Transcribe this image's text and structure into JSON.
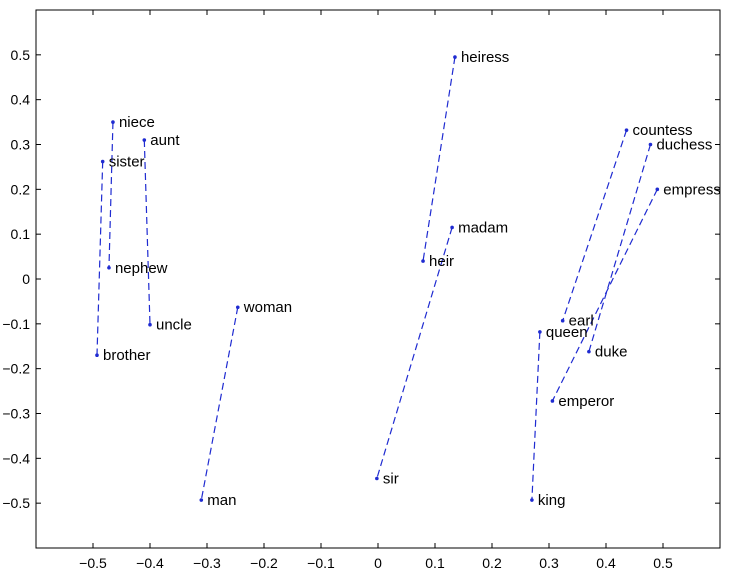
{
  "chart_data": {
    "type": "scatter",
    "title": "",
    "xlabel": "",
    "ylabel": "",
    "xlim": [
      -0.6,
      0.6
    ],
    "ylim": [
      -0.6,
      0.6
    ],
    "xticks": [
      -0.5,
      -0.4,
      -0.3,
      -0.2,
      -0.1,
      0,
      0.1,
      0.2,
      0.3,
      0.4,
      0.5
    ],
    "xtick_labels": [
      "−0.5",
      "−0.4",
      "−0.3",
      "−0.2",
      "−0.1",
      "0",
      "0.1",
      "0.2",
      "0.3",
      "0.4",
      "0.5"
    ],
    "yticks": [
      0.5,
      0.4,
      0.3,
      0.2,
      0.1,
      0,
      -0.1,
      -0.2,
      -0.3,
      -0.4,
      -0.5
    ],
    "ytick_labels": [
      "0.5",
      "0.4",
      "0.3",
      "0.2",
      "0.1",
      "0",
      "−0.1",
      "−0.2",
      "−0.3",
      "−0.4",
      "−0.5"
    ],
    "grid": false,
    "legend": "none",
    "line_color": "#1f2bd1",
    "point_color": "#1f2bd1",
    "points": [
      {
        "label": "niece",
        "x": -0.465,
        "y": 0.35
      },
      {
        "label": "aunt",
        "x": -0.41,
        "y": 0.31
      },
      {
        "label": "sister",
        "x": -0.483,
        "y": 0.262
      },
      {
        "label": "nephew",
        "x": -0.472,
        "y": 0.025
      },
      {
        "label": "uncle",
        "x": -0.4,
        "y": -0.102
      },
      {
        "label": "brother",
        "x": -0.493,
        "y": -0.17
      },
      {
        "label": "woman",
        "x": -0.246,
        "y": -0.063
      },
      {
        "label": "man",
        "x": -0.31,
        "y": -0.493
      },
      {
        "label": "heiress",
        "x": 0.135,
        "y": 0.495
      },
      {
        "label": "madam",
        "x": 0.13,
        "y": 0.115
      },
      {
        "label": "heir",
        "x": 0.079,
        "y": 0.04
      },
      {
        "label": "sir",
        "x": -0.002,
        "y": -0.445
      },
      {
        "label": "countess",
        "x": 0.436,
        "y": 0.332
      },
      {
        "label": "duchess",
        "x": 0.478,
        "y": 0.3
      },
      {
        "label": "empress",
        "x": 0.49,
        "y": 0.2
      },
      {
        "label": "earl",
        "x": 0.324,
        "y": -0.093
      },
      {
        "label": "queen",
        "x": 0.284,
        "y": -0.118
      },
      {
        "label": "duke",
        "x": 0.37,
        "y": -0.162
      },
      {
        "label": "emperor",
        "x": 0.306,
        "y": -0.272
      },
      {
        "label": "king",
        "x": 0.27,
        "y": -0.493
      }
    ],
    "pairs": [
      [
        "niece",
        "nephew"
      ],
      [
        "aunt",
        "uncle"
      ],
      [
        "sister",
        "brother"
      ],
      [
        "woman",
        "man"
      ],
      [
        "heiress",
        "heir"
      ],
      [
        "madam",
        "sir"
      ],
      [
        "countess",
        "earl"
      ],
      [
        "duchess",
        "duke"
      ],
      [
        "empress",
        "emperor"
      ],
      [
        "queen",
        "king"
      ]
    ]
  }
}
